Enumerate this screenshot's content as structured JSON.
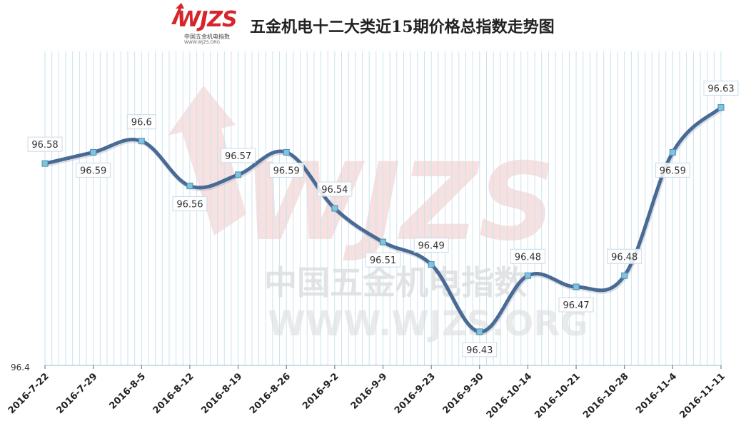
{
  "logo": {
    "brand": "WJZS",
    "line1": "中国五金机电指数",
    "line2": "WWW.WJZS.ORG"
  },
  "watermark": {
    "brand": "WJZS",
    "line1": "中国五金机电指数",
    "line2": "WWW.WJZS.ORG"
  },
  "chart_data": {
    "type": "line",
    "title": "五金机电十二大类近15期价格总指数走势图",
    "xlabel": "",
    "ylabel": "",
    "categories": [
      "2016-7-22",
      "2016-7-29",
      "2016-8-5",
      "2016-8-12",
      "2016-8-19",
      "2016-8-26",
      "2016-9-2",
      "2016-9-9",
      "2016-9-23",
      "2016-9-30",
      "2016-10-14",
      "2016-10-21",
      "2016-10-28",
      "2016-11-4",
      "2016-11-11"
    ],
    "series": [
      {
        "values": [
          96.58,
          96.59,
          96.6,
          96.56,
          96.57,
          96.59,
          96.54,
          96.51,
          96.49,
          96.43,
          96.48,
          96.47,
          96.48,
          96.59,
          96.63
        ]
      }
    ],
    "y_tick_labels": [
      "96.4"
    ],
    "ylim": [
      96.4,
      96.68
    ],
    "grid": "vertical",
    "legend": "none",
    "colors": {
      "line": "#4a6a96",
      "marker": "#7fc3df",
      "grid": "#c9e3ee",
      "watermark": "#f2c9c9"
    }
  }
}
